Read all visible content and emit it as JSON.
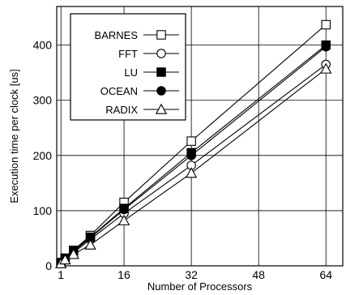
{
  "chart_data": {
    "type": "line",
    "title": "",
    "xlabel": "Number of Processors",
    "ylabel": "Execution time per clock [us]",
    "x": [
      1,
      2,
      4,
      8,
      16,
      32,
      64
    ],
    "xticks": [
      1,
      16,
      32,
      48,
      64
    ],
    "yticks": [
      0,
      100,
      200,
      300,
      400
    ],
    "xlim": [
      0,
      68
    ],
    "ylim": [
      0,
      470
    ],
    "grid": true,
    "legend_position": "top-left",
    "series": [
      {
        "name": "BARNES",
        "marker": "square-open",
        "values": [
          6,
          14,
          28,
          55,
          115,
          226,
          437
        ]
      },
      {
        "name": "FFT",
        "marker": "circle-open",
        "values": [
          5,
          12,
          24,
          48,
          95,
          182,
          365
        ]
      },
      {
        "name": "LU",
        "marker": "square-filled",
        "values": [
          5,
          13,
          27,
          52,
          104,
          205,
          400
        ]
      },
      {
        "name": "OCEAN",
        "marker": "circle-filled",
        "values": [
          5,
          13,
          26,
          51,
          102,
          200,
          397
        ]
      },
      {
        "name": "RADIX",
        "marker": "triangle-open",
        "values": [
          4,
          11,
          21,
          38,
          82,
          168,
          357
        ]
      }
    ]
  }
}
